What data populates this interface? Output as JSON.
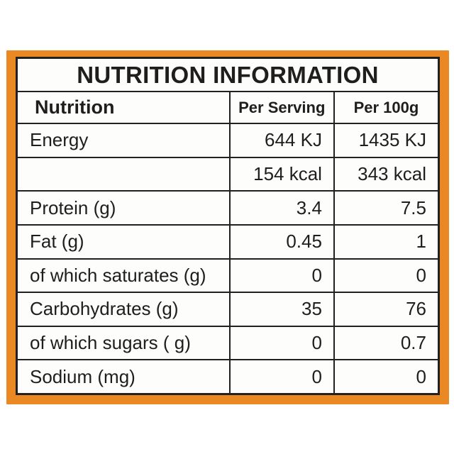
{
  "colors": {
    "frame_orange": "#EA8823",
    "table_border": "#232120",
    "text": "#1f1e1c",
    "table_background": "#fdfdfc",
    "page_background": "#ffffff"
  },
  "label": {
    "title": "NUTRITION INFORMATION",
    "columns": [
      "Nutrition",
      "Per Serving",
      "Per 100g"
    ],
    "rows": [
      {
        "name": "Energy",
        "per_serving": "644 KJ",
        "per_100g": "1435 KJ"
      },
      {
        "name": "",
        "per_serving": "154 kcal",
        "per_100g": "343 kcal"
      },
      {
        "name": "Protein (g)",
        "per_serving": "3.4",
        "per_100g": "7.5"
      },
      {
        "name": "Fat (g)",
        "per_serving": "0.45",
        "per_100g": "1"
      },
      {
        "name": "of which saturates (g)",
        "per_serving": "0",
        "per_100g": "0"
      },
      {
        "name": "Carbohydrates (g)",
        "per_serving": "35",
        "per_100g": "76"
      },
      {
        "name": "of which sugars ( g)",
        "per_serving": "0",
        "per_100g": "0.7"
      },
      {
        "name": "Sodium (mg)",
        "per_serving": "0",
        "per_100g": "0"
      }
    ]
  }
}
